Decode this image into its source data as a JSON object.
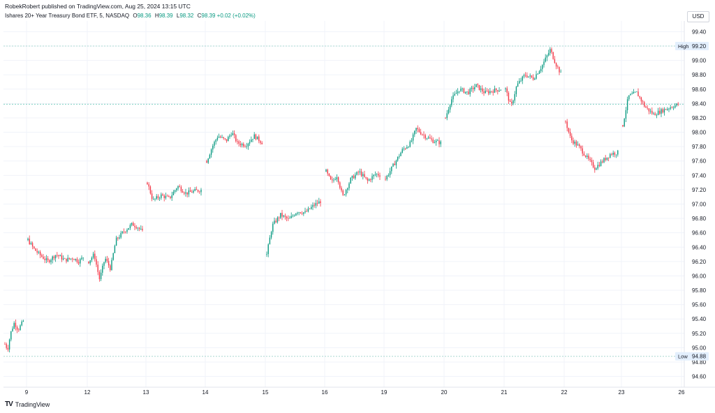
{
  "publisher_line": "RobekRobert published on TradingView.com, Aug 25, 2024 13:15 UTC",
  "legend": {
    "symbol": "Ishares 20+ Year Treasury Bond ETF, 5, NASDAQ",
    "open_label": "O",
    "open": "98.36",
    "high_label": "H",
    "high": "98.39",
    "low_label": "L",
    "low": "98.32",
    "close_label": "C",
    "close": "98.39",
    "change": "+0.02 (+0.02%)"
  },
  "currency_button": "USD",
  "footer_brand": "TradingView",
  "footer_mark": "TV",
  "colors": {
    "up": "#089981",
    "down": "#f23645",
    "hline": "#a8d8d0",
    "grid": "#f0f3fa"
  },
  "chart_data": {
    "type": "candlestick",
    "y_axis_ticks": [
      "99.40",
      "99.20",
      "99.00",
      "98.80",
      "98.60",
      "98.40",
      "98.20",
      "98.00",
      "97.80",
      "97.60",
      "97.40",
      "97.20",
      "97.00",
      "96.80",
      "96.60",
      "96.40",
      "96.20",
      "96.00",
      "95.80",
      "95.60",
      "95.40",
      "95.20",
      "95.00",
      "94.80",
      "94.60"
    ],
    "x_axis_ticks": [
      "9",
      "12",
      "13",
      "14",
      "15",
      "16",
      "19",
      "20",
      "21",
      "22",
      "23",
      "26"
    ],
    "ylim": [
      94.45,
      99.55
    ],
    "high_line": {
      "label": "High",
      "value": 99.2,
      "text": "99.20"
    },
    "low_line": {
      "label": "Low",
      "value": 94.88,
      "text": "94.88"
    },
    "mid_line": {
      "value": 98.39
    },
    "session_path": [
      [
        [
          0,
          95.05
        ],
        [
          0.15,
          94.98
        ],
        [
          0.3,
          95.2
        ],
        [
          0.5,
          95.35
        ],
        [
          0.7,
          95.25
        ],
        [
          1.0,
          95.38
        ]
      ],
      [
        [
          0,
          96.5
        ],
        [
          0.1,
          96.38
        ],
        [
          0.2,
          96.3
        ],
        [
          0.35,
          96.2
        ],
        [
          0.5,
          96.3
        ],
        [
          0.65,
          96.22
        ],
        [
          0.8,
          96.25
        ],
        [
          0.9,
          96.2
        ],
        [
          1.0,
          96.28
        ]
      ],
      [
        [
          0,
          96.2
        ],
        [
          0.1,
          96.3
        ],
        [
          0.2,
          95.95
        ],
        [
          0.3,
          96.25
        ],
        [
          0.4,
          96.1
        ],
        [
          0.5,
          96.5
        ],
        [
          0.65,
          96.62
        ],
        [
          0.8,
          96.72
        ],
        [
          0.9,
          96.68
        ],
        [
          1.0,
          96.6
        ]
      ],
      [
        [
          0,
          97.3
        ],
        [
          0.1,
          97.05
        ],
        [
          0.25,
          97.12
        ],
        [
          0.4,
          97.08
        ],
        [
          0.55,
          97.25
        ],
        [
          0.7,
          97.15
        ],
        [
          0.85,
          97.18
        ],
        [
          1.0,
          97.2
        ]
      ],
      [
        [
          0,
          97.6
        ],
        [
          0.1,
          97.8
        ],
        [
          0.2,
          97.95
        ],
        [
          0.35,
          97.88
        ],
        [
          0.45,
          98.0
        ],
        [
          0.55,
          97.85
        ],
        [
          0.7,
          97.82
        ],
        [
          0.85,
          97.95
        ],
        [
          1.0,
          97.85
        ]
      ],
      [
        [
          0,
          96.3
        ],
        [
          0.1,
          96.7
        ],
        [
          0.25,
          96.85
        ],
        [
          0.4,
          96.78
        ],
        [
          0.55,
          96.9
        ],
        [
          0.7,
          96.88
        ],
        [
          0.85,
          96.98
        ],
        [
          1.0,
          97.05
        ]
      ],
      [
        [
          0,
          97.45
        ],
        [
          0.1,
          97.3
        ],
        [
          0.2,
          97.4
        ],
        [
          0.3,
          97.1
        ],
        [
          0.45,
          97.35
        ],
        [
          0.6,
          97.45
        ],
        [
          0.75,
          97.32
        ],
        [
          0.9,
          97.42
        ],
        [
          1.0,
          97.4
        ]
      ],
      [
        [
          0,
          97.35
        ],
        [
          0.15,
          97.55
        ],
        [
          0.3,
          97.75
        ],
        [
          0.45,
          97.85
        ],
        [
          0.55,
          98.05
        ],
        [
          0.7,
          97.95
        ],
        [
          0.85,
          97.88
        ],
        [
          1.0,
          97.85
        ]
      ],
      [
        [
          0,
          98.2
        ],
        [
          0.1,
          98.45
        ],
        [
          0.25,
          98.6
        ],
        [
          0.4,
          98.55
        ],
        [
          0.55,
          98.65
        ],
        [
          0.7,
          98.55
        ],
        [
          0.85,
          98.58
        ],
        [
          1.0,
          98.6
        ]
      ],
      [
        [
          0,
          98.6
        ],
        [
          0.1,
          98.35
        ],
        [
          0.2,
          98.65
        ],
        [
          0.35,
          98.8
        ],
        [
          0.5,
          98.75
        ],
        [
          0.65,
          98.92
        ],
        [
          0.8,
          99.15
        ],
        [
          0.9,
          98.95
        ],
        [
          1.0,
          98.8
        ]
      ],
      [
        [
          0,
          98.15
        ],
        [
          0.1,
          97.9
        ],
        [
          0.25,
          97.8
        ],
        [
          0.4,
          97.65
        ],
        [
          0.55,
          97.5
        ],
        [
          0.7,
          97.6
        ],
        [
          0.85,
          97.7
        ],
        [
          1.0,
          97.72
        ]
      ],
      [
        [
          0,
          98.1
        ],
        [
          0.1,
          98.5
        ],
        [
          0.25,
          98.55
        ],
        [
          0.4,
          98.35
        ],
        [
          0.55,
          98.25
        ],
        [
          0.7,
          98.3
        ],
        [
          0.85,
          98.35
        ],
        [
          1.0,
          98.39
        ]
      ]
    ],
    "session_spans": [
      [
        7,
        38
      ],
      [
        38,
        125
      ],
      [
        125,
        209
      ],
      [
        209,
        294
      ],
      [
        294,
        380
      ],
      [
        380,
        465
      ],
      [
        465,
        550
      ],
      [
        550,
        636
      ],
      [
        636,
        722
      ],
      [
        722,
        808
      ],
      [
        808,
        890
      ],
      [
        890,
        976
      ]
    ]
  }
}
